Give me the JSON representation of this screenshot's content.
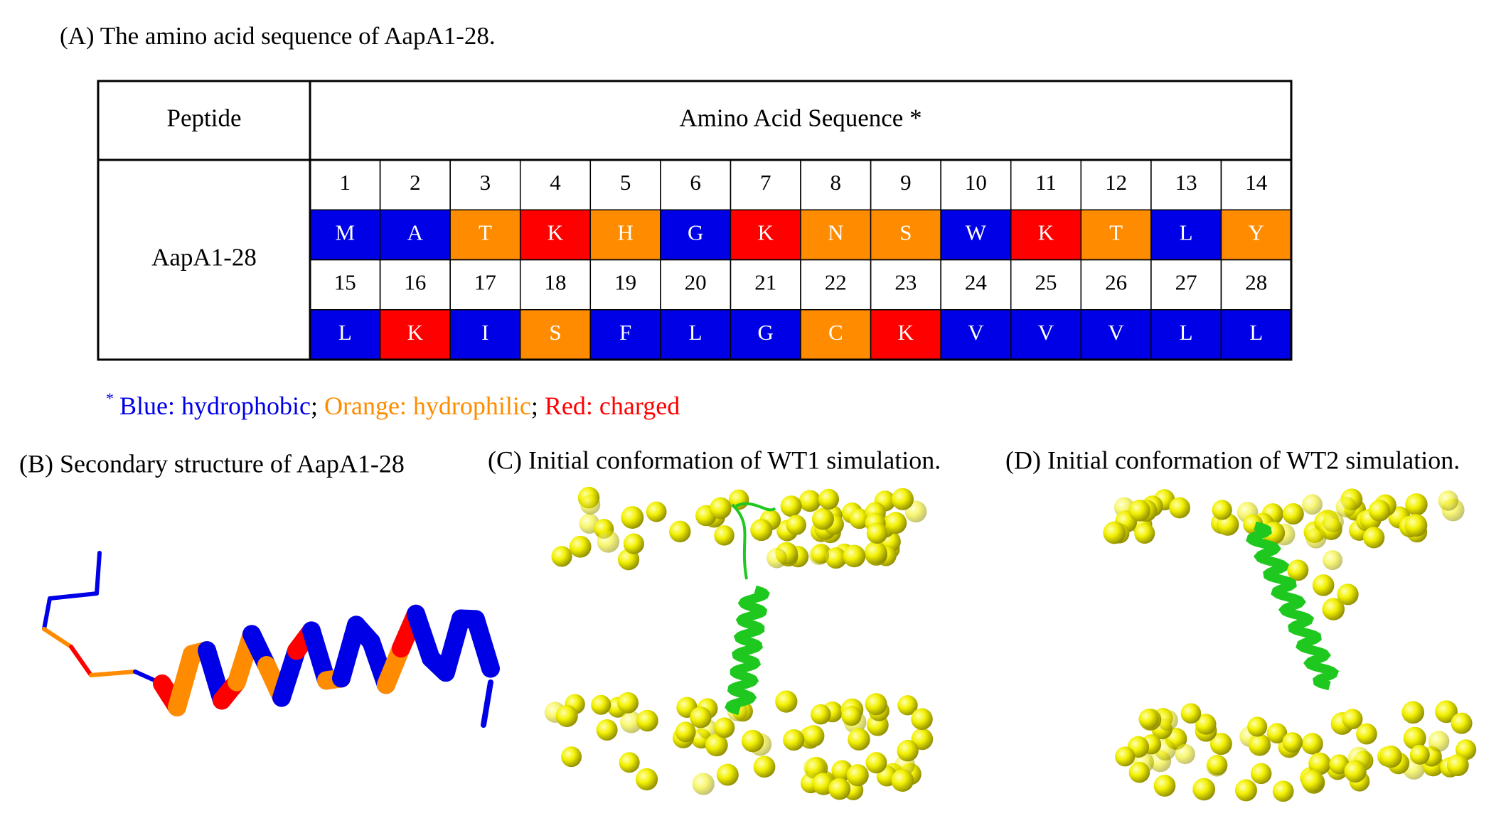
{
  "panel_a": {
    "title": "(A) The amino acid sequence of AapA1-28.",
    "table": {
      "header": [
        "Peptide",
        "Amino Acid Sequence *"
      ],
      "peptide": "AapA1-28",
      "positions": [
        "1",
        "2",
        "3",
        "4",
        "5",
        "6",
        "7",
        "8",
        "9",
        "10",
        "11",
        "12",
        "13",
        "14",
        "15",
        "16",
        "17",
        "18",
        "19",
        "20",
        "21",
        "22",
        "23",
        "24",
        "25",
        "26",
        "27",
        "28"
      ],
      "residues": [
        "M",
        "A",
        "T",
        "K",
        "H",
        "G",
        "K",
        "N",
        "S",
        "W",
        "K",
        "T",
        "L",
        "Y",
        "L",
        "K",
        "I",
        "S",
        "F",
        "L",
        "G",
        "C",
        "K",
        "V",
        "V",
        "V",
        "L",
        "L"
      ],
      "classes": [
        0,
        0,
        1,
        2,
        1,
        0,
        2,
        1,
        1,
        0,
        2,
        1,
        0,
        1,
        0,
        2,
        0,
        1,
        0,
        0,
        0,
        1,
        2,
        0,
        0,
        0,
        0,
        0
      ]
    },
    "footnote": {
      "mark": "*",
      "separator": ";",
      "items": [
        {
          "text": "Blue: hydrophobic",
          "color": "#0000e6"
        },
        {
          "text": "Orange: hydrophilic",
          "color": "#ff8c00"
        },
        {
          "text": "Red: charged",
          "color": "#ff0000"
        }
      ]
    }
  },
  "panel_b": {
    "title": "(B) Secondary structure of AapA1-28"
  },
  "panel_c": {
    "title": "(C) Initial conformation of WT1 simulation."
  },
  "panel_d": {
    "title": "(D) Initial conformation of WT2 simulation."
  }
}
